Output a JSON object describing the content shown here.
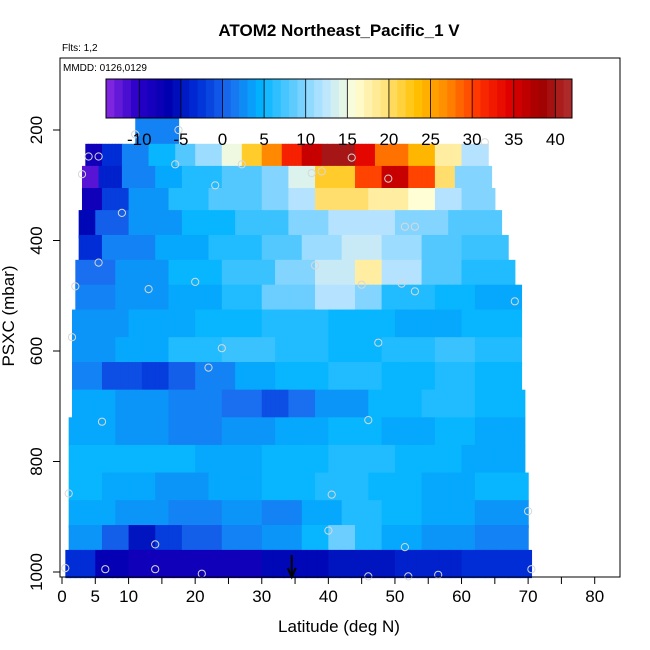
{
  "chart_data": {
    "type": "heatmap",
    "title": "ATOM2 Northeast_Pacific_1 V",
    "annotations": {
      "flts": "Flts: 1,2",
      "mmdd": "MMDD: 0126,0129"
    },
    "xlabel": "Latitude (deg N)",
    "ylabel": "PSXC (mbar)",
    "xlim": [
      0,
      85
    ],
    "ylim": [
      1000,
      0
    ],
    "x_ticks": [
      0,
      5,
      10,
      20,
      30,
      40,
      50,
      60,
      70,
      80
    ],
    "x_tick_labels": [
      "0",
      "5",
      "10",
      "20",
      "30",
      "40",
      "50",
      "60",
      "70",
      "80"
    ],
    "y_ticks": [
      200,
      400,
      600,
      800,
      1000
    ],
    "y_tick_labels": [
      "200",
      "400",
      "600",
      "800",
      "1000"
    ],
    "colorbar": {
      "min": -14,
      "max": 42,
      "ticks": [
        -10,
        -5,
        0,
        5,
        10,
        15,
        20,
        25,
        30,
        35,
        40
      ],
      "tick_labels": [
        "-10",
        "-5",
        "0",
        "5",
        "10",
        "15",
        "20",
        "25",
        "30",
        "35",
        "40"
      ],
      "colors": [
        "#8a2be2",
        "#2a00c8",
        "#0000b0",
        "#0030d8",
        "#1a6ef0",
        "#00b4ff",
        "#5ccaff",
        "#b8e4ff",
        "#ffffd8",
        "#ffe27a",
        "#ffc000",
        "#ff8800",
        "#ff3000",
        "#e00000",
        "#a00000",
        "#b03030"
      ]
    },
    "grid": false,
    "marker": {
      "type": "arrow",
      "x": 34.5
    },
    "rows": [
      {
        "p": 200,
        "half": 25,
        "x0": 11,
        "x1": 17.5,
        "segments": [
          [
            11,
            17.5,
            2
          ]
        ]
      },
      {
        "p": 250,
        "half": 25,
        "x0": 3.5,
        "x1": 64,
        "segments": [
          [
            3.5,
            6,
            -8
          ],
          [
            6,
            9,
            -3
          ],
          [
            9,
            13,
            2
          ],
          [
            13,
            17,
            5
          ],
          [
            17,
            20,
            8
          ],
          [
            20,
            24,
            11
          ],
          [
            24,
            27,
            15
          ],
          [
            27,
            30,
            22
          ],
          [
            30,
            33,
            27
          ],
          [
            33,
            36,
            32
          ],
          [
            36,
            39,
            36
          ],
          [
            39,
            44,
            40
          ],
          [
            44,
            47,
            34
          ],
          [
            47,
            52,
            28
          ],
          [
            52,
            56,
            24
          ],
          [
            56,
            60,
            18
          ],
          [
            60,
            64,
            12
          ]
        ]
      },
      {
        "p": 290,
        "half": 25,
        "x0": 3,
        "x1": 64.5,
        "segments": [
          [
            3,
            5.5,
            -12
          ],
          [
            5.5,
            9,
            -4
          ],
          [
            9,
            14,
            2
          ],
          [
            14,
            18,
            4
          ],
          [
            18,
            24,
            6
          ],
          [
            24,
            30,
            8
          ],
          [
            30,
            34,
            10
          ],
          [
            34,
            38,
            14
          ],
          [
            38,
            44,
            22
          ],
          [
            44,
            48,
            30
          ],
          [
            48,
            52,
            36
          ],
          [
            52,
            56,
            30
          ],
          [
            56,
            59,
            20
          ],
          [
            59,
            64.5,
            10
          ]
        ]
      },
      {
        "p": 330,
        "half": 25,
        "x0": 3,
        "x1": 65,
        "segments": [
          [
            3,
            6,
            -8
          ],
          [
            6,
            10,
            -2
          ],
          [
            10,
            16,
            3
          ],
          [
            16,
            22,
            6
          ],
          [
            22,
            30,
            8
          ],
          [
            30,
            34,
            10
          ],
          [
            34,
            38,
            12
          ],
          [
            38,
            46,
            20
          ],
          [
            46,
            52,
            18
          ],
          [
            52,
            56,
            16
          ],
          [
            56,
            60,
            12
          ],
          [
            60,
            65,
            10
          ]
        ]
      },
      {
        "p": 370,
        "half": 25,
        "x0": 2.5,
        "x1": 66,
        "segments": [
          [
            2.5,
            5,
            -6
          ],
          [
            5,
            10,
            0
          ],
          [
            10,
            18,
            3
          ],
          [
            18,
            26,
            5
          ],
          [
            26,
            34,
            7
          ],
          [
            34,
            40,
            10
          ],
          [
            40,
            50,
            12
          ],
          [
            50,
            58,
            10
          ],
          [
            58,
            66,
            8
          ]
        ]
      },
      {
        "p": 415,
        "half": 25,
        "x0": 2.5,
        "x1": 67,
        "segments": [
          [
            2.5,
            6,
            -3
          ],
          [
            6,
            14,
            2
          ],
          [
            14,
            22,
            4
          ],
          [
            22,
            30,
            6
          ],
          [
            30,
            36,
            8
          ],
          [
            36,
            42,
            11
          ],
          [
            42,
            48,
            13
          ],
          [
            48,
            54,
            11
          ],
          [
            54,
            60,
            8
          ],
          [
            60,
            67,
            7
          ]
        ]
      },
      {
        "p": 460,
        "half": 25,
        "x0": 2,
        "x1": 68,
        "segments": [
          [
            2,
            8,
            1
          ],
          [
            8,
            16,
            3
          ],
          [
            16,
            24,
            5
          ],
          [
            24,
            32,
            7
          ],
          [
            32,
            38,
            10
          ],
          [
            38,
            44,
            13
          ],
          [
            44,
            48,
            18
          ],
          [
            48,
            54,
            12
          ],
          [
            54,
            60,
            8
          ],
          [
            60,
            68,
            6
          ]
        ]
      },
      {
        "p": 505,
        "half": 25,
        "x0": 2,
        "x1": 69,
        "segments": [
          [
            2,
            8,
            2
          ],
          [
            8,
            16,
            3
          ],
          [
            16,
            24,
            4
          ],
          [
            24,
            30,
            6
          ],
          [
            30,
            38,
            9
          ],
          [
            38,
            44,
            12
          ],
          [
            44,
            48,
            10
          ],
          [
            48,
            56,
            6
          ],
          [
            56,
            62,
            5
          ],
          [
            62,
            69,
            4
          ]
        ]
      },
      {
        "p": 550,
        "half": 25,
        "x0": 1.5,
        "x1": 69,
        "segments": [
          [
            1.5,
            10,
            3
          ],
          [
            10,
            20,
            4
          ],
          [
            20,
            30,
            5
          ],
          [
            30,
            40,
            6
          ],
          [
            40,
            50,
            5
          ],
          [
            50,
            60,
            4
          ],
          [
            60,
            69,
            5
          ]
        ]
      },
      {
        "p": 600,
        "half": 25,
        "x0": 1.5,
        "x1": 69,
        "segments": [
          [
            1.5,
            8,
            3
          ],
          [
            8,
            16,
            4
          ],
          [
            16,
            24,
            6
          ],
          [
            24,
            32,
            7
          ],
          [
            32,
            40,
            6
          ],
          [
            40,
            48,
            5
          ],
          [
            48,
            56,
            6
          ],
          [
            56,
            62,
            7
          ],
          [
            62,
            69,
            6
          ]
        ]
      },
      {
        "p": 645,
        "half": 25,
        "x0": 1.5,
        "x1": 69,
        "segments": [
          [
            1.5,
            6,
            2
          ],
          [
            6,
            12,
            -1
          ],
          [
            12,
            16,
            -2
          ],
          [
            16,
            20,
            0
          ],
          [
            20,
            26,
            2
          ],
          [
            26,
            32,
            4
          ],
          [
            32,
            40,
            5
          ],
          [
            40,
            48,
            6
          ],
          [
            48,
            56,
            5
          ],
          [
            56,
            62,
            6
          ],
          [
            62,
            69,
            5
          ]
        ]
      },
      {
        "p": 695,
        "half": 25,
        "x0": 1.5,
        "x1": 69.5,
        "segments": [
          [
            1.5,
            8,
            4
          ],
          [
            8,
            16,
            3
          ],
          [
            16,
            24,
            2
          ],
          [
            24,
            30,
            1
          ],
          [
            30,
            34,
            -1
          ],
          [
            34,
            38,
            1
          ],
          [
            38,
            46,
            3
          ],
          [
            46,
            54,
            5
          ],
          [
            54,
            62,
            6
          ],
          [
            62,
            69.5,
            5
          ]
        ]
      },
      {
        "p": 745,
        "half": 25,
        "x0": 1,
        "x1": 69.5,
        "segments": [
          [
            1,
            8,
            4
          ],
          [
            8,
            16,
            3
          ],
          [
            16,
            24,
            2
          ],
          [
            24,
            32,
            3
          ],
          [
            32,
            40,
            4
          ],
          [
            40,
            48,
            5
          ],
          [
            48,
            56,
            4
          ],
          [
            56,
            62,
            5
          ],
          [
            62,
            69.5,
            4
          ]
        ]
      },
      {
        "p": 795,
        "half": 25,
        "x0": 1,
        "x1": 69.5,
        "segments": [
          [
            1,
            10,
            5
          ],
          [
            10,
            20,
            5
          ],
          [
            20,
            30,
            4
          ],
          [
            30,
            40,
            5
          ],
          [
            40,
            50,
            6
          ],
          [
            50,
            60,
            5
          ],
          [
            60,
            69.5,
            4
          ]
        ]
      },
      {
        "p": 845,
        "half": 25,
        "x0": 1,
        "x1": 70,
        "segments": [
          [
            1,
            6,
            5
          ],
          [
            6,
            14,
            4
          ],
          [
            14,
            22,
            3
          ],
          [
            22,
            30,
            4
          ],
          [
            30,
            38,
            5
          ],
          [
            38,
            46,
            6
          ],
          [
            46,
            54,
            5
          ],
          [
            54,
            62,
            4
          ],
          [
            62,
            70,
            5
          ]
        ]
      },
      {
        "p": 895,
        "half": 25,
        "x0": 1,
        "x1": 70,
        "segments": [
          [
            1,
            8,
            4
          ],
          [
            8,
            16,
            3
          ],
          [
            16,
            24,
            2
          ],
          [
            24,
            30,
            3
          ],
          [
            30,
            36,
            2
          ],
          [
            36,
            42,
            4
          ],
          [
            42,
            48,
            6
          ],
          [
            48,
            54,
            5
          ],
          [
            54,
            62,
            4
          ],
          [
            62,
            70,
            3
          ]
        ]
      },
      {
        "p": 940,
        "half": 25,
        "x0": 1,
        "x1": 70,
        "segments": [
          [
            1,
            6,
            3
          ],
          [
            6,
            10,
            0
          ],
          [
            10,
            14,
            -5
          ],
          [
            14,
            18,
            -2
          ],
          [
            18,
            24,
            0
          ],
          [
            24,
            30,
            2
          ],
          [
            30,
            36,
            3
          ],
          [
            36,
            40,
            5
          ],
          [
            40,
            44,
            9
          ],
          [
            44,
            48,
            6
          ],
          [
            48,
            54,
            4
          ],
          [
            54,
            62,
            3
          ],
          [
            62,
            70,
            2
          ]
        ]
      },
      {
        "p": 985,
        "half": 25,
        "x0": 0.5,
        "x1": 70.5,
        "segments": [
          [
            0.5,
            5,
            -3
          ],
          [
            5,
            10,
            -7
          ],
          [
            10,
            30,
            -8
          ],
          [
            30,
            40,
            -6
          ],
          [
            40,
            50,
            -5
          ],
          [
            50,
            60,
            -4
          ],
          [
            60,
            70.5,
            -3
          ]
        ]
      }
    ],
    "points": [
      {
        "x": 11,
        "p": 208
      },
      {
        "x": 17.5,
        "p": 200
      },
      {
        "x": 4,
        "p": 248
      },
      {
        "x": 5.5,
        "p": 248
      },
      {
        "x": 3,
        "p": 280
      },
      {
        "x": 17,
        "p": 262
      },
      {
        "x": 23,
        "p": 300
      },
      {
        "x": 27,
        "p": 262
      },
      {
        "x": 37.5,
        "p": 278
      },
      {
        "x": 39,
        "p": 275
      },
      {
        "x": 43.5,
        "p": 250
      },
      {
        "x": 49,
        "p": 288
      },
      {
        "x": 63.5,
        "p": 222
      },
      {
        "x": 9,
        "p": 350
      },
      {
        "x": 5.5,
        "p": 440
      },
      {
        "x": 51.5,
        "p": 375
      },
      {
        "x": 53,
        "p": 375
      },
      {
        "x": 38,
        "p": 445
      },
      {
        "x": 2,
        "p": 483
      },
      {
        "x": 13,
        "p": 488
      },
      {
        "x": 20,
        "p": 475
      },
      {
        "x": 45,
        "p": 480
      },
      {
        "x": 51,
        "p": 478
      },
      {
        "x": 53,
        "p": 492
      },
      {
        "x": 68,
        "p": 510
      },
      {
        "x": 1.5,
        "p": 575
      },
      {
        "x": 24,
        "p": 595
      },
      {
        "x": 47.5,
        "p": 585
      },
      {
        "x": 22,
        "p": 630
      },
      {
        "x": 6,
        "p": 728
      },
      {
        "x": 46,
        "p": 725
      },
      {
        "x": 1,
        "p": 858
      },
      {
        "x": 40.5,
        "p": 860
      },
      {
        "x": 70,
        "p": 890
      },
      {
        "x": 40,
        "p": 925
      },
      {
        "x": 14,
        "p": 950
      },
      {
        "x": 51.5,
        "p": 955
      },
      {
        "x": 0.5,
        "p": 993
      },
      {
        "x": 6.5,
        "p": 995
      },
      {
        "x": 14,
        "p": 995
      },
      {
        "x": 21,
        "p": 1003
      },
      {
        "x": 46,
        "p": 1008
      },
      {
        "x": 52,
        "p": 1008
      },
      {
        "x": 56.5,
        "p": 1005
      },
      {
        "x": 70.5,
        "p": 995
      }
    ]
  }
}
